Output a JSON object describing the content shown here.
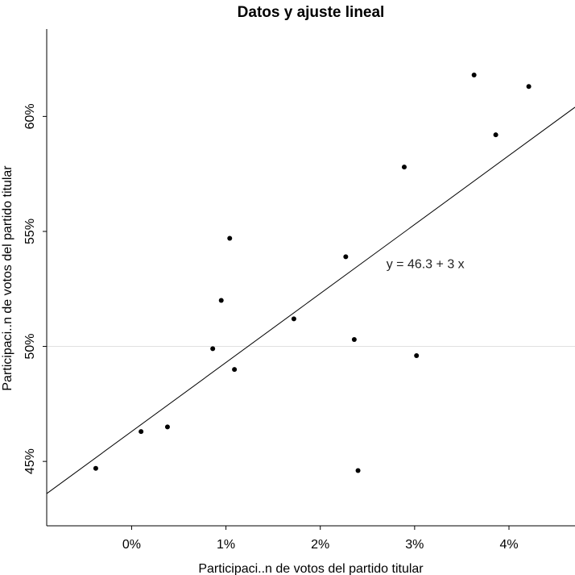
{
  "chart_data": {
    "type": "scatter",
    "title": "Datos y ajuste lineal",
    "xlabel": "Participaci..n de votos del partido titular",
    "ylabel": "Participaci..n de votos del partido titular",
    "xlim": [
      -0.9,
      4.7
    ],
    "ylim": [
      42.2,
      63.8
    ],
    "x_ticks": [
      0,
      1,
      2,
      3,
      4
    ],
    "x_tick_labels": [
      "0%",
      "1%",
      "2%",
      "3%",
      "4%"
    ],
    "y_ticks": [
      45,
      50,
      55,
      60
    ],
    "y_tick_labels": [
      "45%",
      "50%",
      "55%",
      "60%"
    ],
    "reference_line_y": 50,
    "grid": false,
    "legend": "none",
    "points": [
      {
        "x": -0.38,
        "y": 44.7
      },
      {
        "x": 0.1,
        "y": 46.3
      },
      {
        "x": 0.38,
        "y": 46.5
      },
      {
        "x": 0.86,
        "y": 49.9
      },
      {
        "x": 0.95,
        "y": 52.0
      },
      {
        "x": 1.04,
        "y": 54.7
      },
      {
        "x": 1.09,
        "y": 49.0
      },
      {
        "x": 1.72,
        "y": 51.2
      },
      {
        "x": 2.27,
        "y": 53.9
      },
      {
        "x": 2.36,
        "y": 50.3
      },
      {
        "x": 2.4,
        "y": 44.6
      },
      {
        "x": 2.89,
        "y": 57.8
      },
      {
        "x": 3.02,
        "y": 49.6
      },
      {
        "x": 3.63,
        "y": 61.8
      },
      {
        "x": 3.86,
        "y": 59.2
      },
      {
        "x": 4.21,
        "y": 61.3
      }
    ],
    "fit": {
      "intercept": 46.3,
      "slope": 3.0
    },
    "annotation": {
      "text": "y = 46.3 + 3 x",
      "x": 2.7,
      "y": 53.4
    }
  },
  "colors": {
    "points": "#000000",
    "fit_line": "#000000",
    "reference_line": "#e0e0e0",
    "axis": "#000000"
  }
}
